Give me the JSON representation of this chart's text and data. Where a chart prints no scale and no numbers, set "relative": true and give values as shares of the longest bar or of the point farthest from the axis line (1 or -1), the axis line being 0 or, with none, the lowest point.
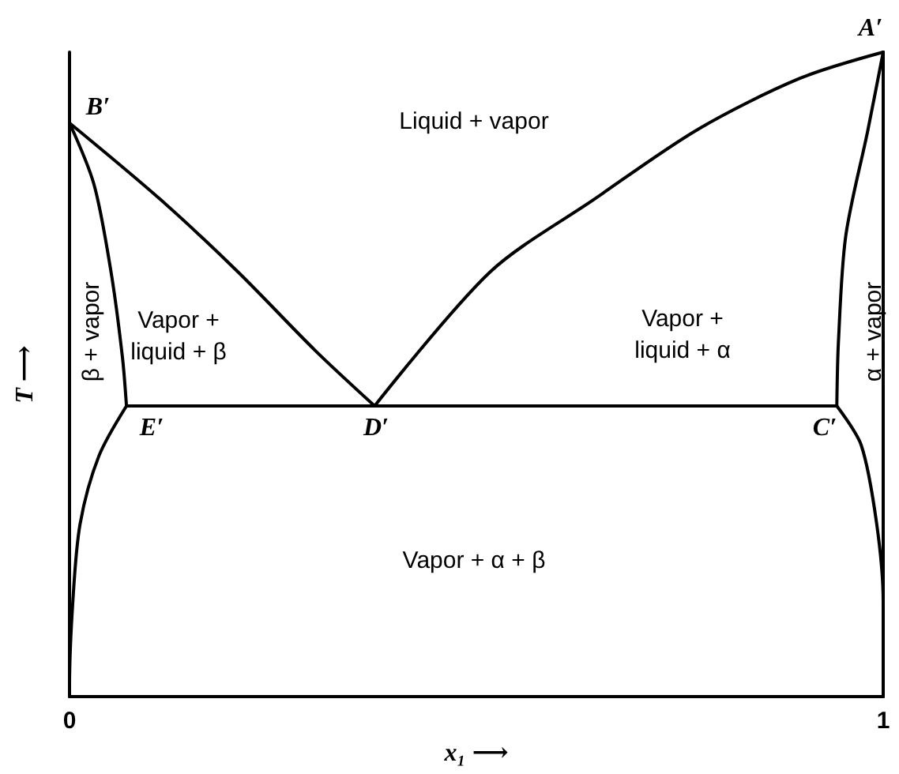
{
  "chart_data": {
    "type": "line",
    "relative": true,
    "xlabel": "x₁ ⟶",
    "ylabel": "T ⟶",
    "xlim": [
      0,
      1
    ],
    "xticks": [
      0,
      1
    ],
    "marker": "none",
    "line_style": "solid",
    "series": [
      {
        "color": "#000000",
        "x": [
          0,
          0.112,
          0.207,
          0.302,
          0.375
        ],
        "values": [
          0.89,
          0.771,
          0.659,
          0.537,
          0.451
        ]
      },
      {
        "color": "#000000",
        "x": [
          0.375,
          0.517,
          0.644,
          0.772,
          0.897,
          1
        ],
        "values": [
          0.451,
          0.659,
          0.771,
          0.88,
          0.959,
          1
        ]
      },
      {
        "color": "#000000",
        "x": [
          0,
          0.03,
          0.051,
          0.065,
          0.07
        ],
        "values": [
          0.89,
          0.795,
          0.659,
          0.527,
          0.451
        ]
      },
      {
        "color": "#000000",
        "x": [
          0.07,
          0.036,
          0.013,
          0.004,
          0,
          0
        ],
        "values": [
          0.451,
          0.373,
          0.268,
          0.146,
          0.015,
          0
        ]
      },
      {
        "color": "#000000",
        "x": [
          1,
          0.981,
          0.954,
          0.945,
          0.943
        ],
        "values": [
          1,
          0.878,
          0.715,
          0.551,
          0.451
        ]
      },
      {
        "color": "#000000",
        "x": [
          0.943,
          0.973,
          0.992,
          1,
          1
        ],
        "values": [
          0.451,
          0.39,
          0.268,
          0.146,
          0
        ]
      },
      {
        "color": "#000000",
        "x": [
          0.07,
          0.943
        ],
        "values": [
          0.451,
          0.451
        ]
      }
    ],
    "annotations": [
      "B′",
      "E′",
      "D′",
      "C′",
      "A′",
      "Liquid + vapor",
      "Vapor +\nliquid + β",
      "Vapor +\nliquid + α",
      "Vapor + α + β",
      "β + vapor",
      "α + vapor"
    ]
  }
}
